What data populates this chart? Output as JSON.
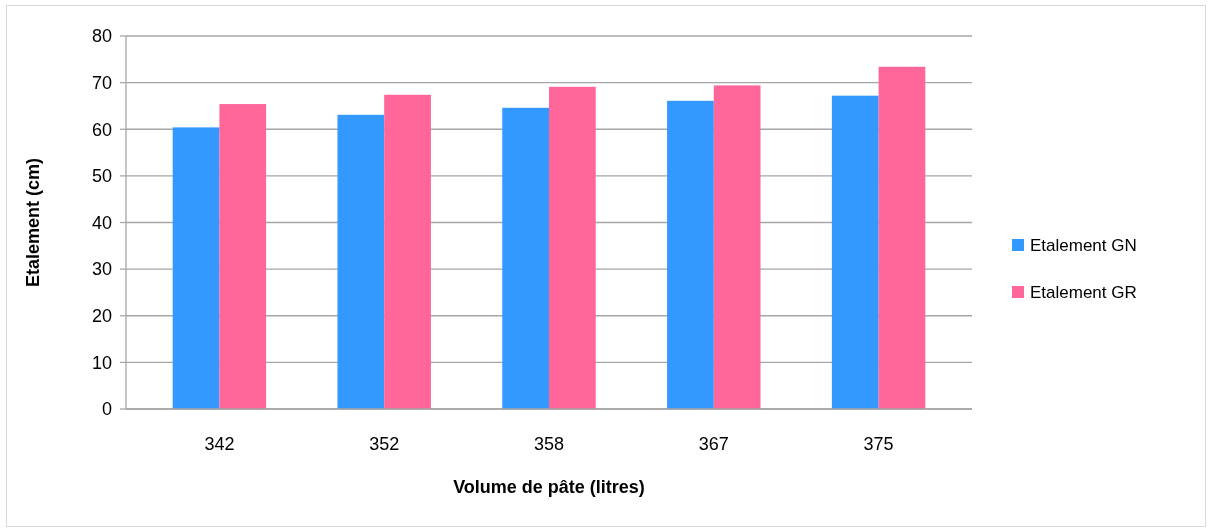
{
  "chart_data": {
    "type": "bar",
    "xlabel": "Volume de pâte (litres)",
    "ylabel": "Etalement (cm)",
    "categories": [
      "342",
      "352",
      "358",
      "367",
      "375"
    ],
    "series": [
      {
        "name": "Etalement GN",
        "color": "#3399ff",
        "values": [
          60.4,
          63.1,
          64.6,
          66.1,
          67.2
        ]
      },
      {
        "name": "Etalement GR",
        "color": "#ff6699",
        "values": [
          65.4,
          67.4,
          69.1,
          69.4,
          73.4
        ]
      }
    ],
    "ylim": [
      0,
      80
    ],
    "yticks": [
      0,
      10,
      20,
      30,
      40,
      50,
      60,
      70,
      80
    ],
    "grid": "y",
    "legend": "right"
  }
}
